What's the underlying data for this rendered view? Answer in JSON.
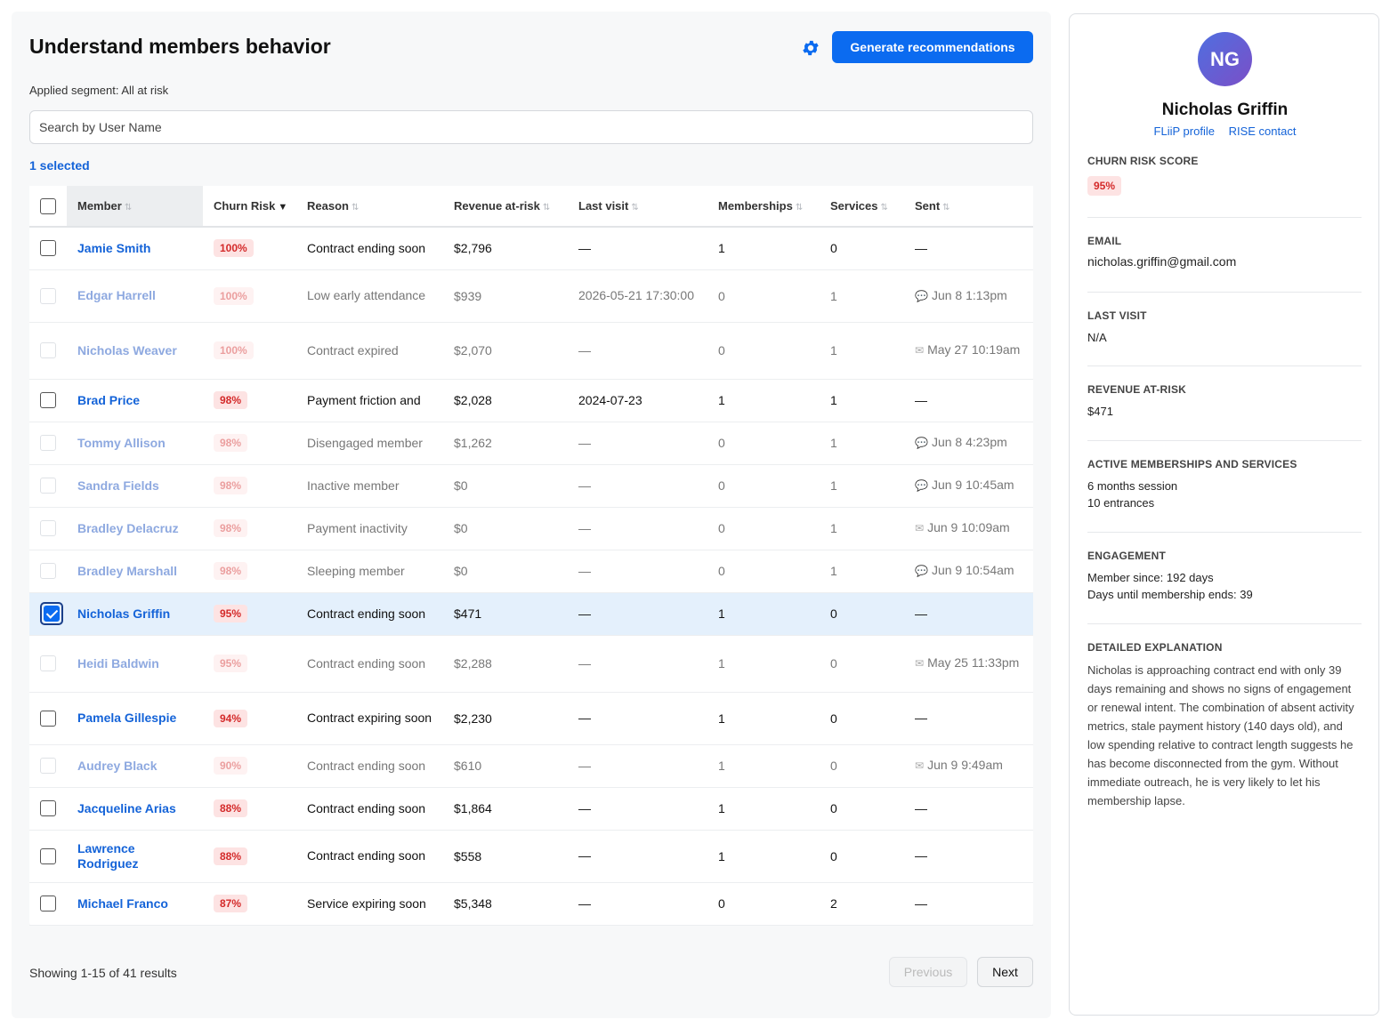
{
  "header": {
    "title": "Understand members behavior",
    "generate_label": "Generate recommendations",
    "segment_text": "Applied segment: All at risk",
    "search_placeholder": "Search by User Name",
    "selected_count": "1 selected"
  },
  "icons": {
    "settings": "gear-icon",
    "sort": "sort-updown-icon",
    "sort_active": "sort-down-icon",
    "sent_chat": "chat-bubble-icon",
    "sent_email": "email-icon"
  },
  "colors": {
    "accent": "#0b6bf0",
    "link": "#1463d8",
    "risk_bg": "#fde3e3",
    "risk_text": "#d42a2a",
    "selected_row": "#e4f0fc"
  },
  "table": {
    "columns": [
      "Member",
      "Churn Risk",
      "Reason",
      "Revenue at-risk",
      "Last visit",
      "Memberships",
      "Services",
      "Sent"
    ],
    "sort_symbol": "⇅",
    "sort_active_symbol": "▼",
    "rows": [
      {
        "name": "Jamie Smith",
        "risk": "100%",
        "reason": "Contract ending soon",
        "revenue": "$2,796",
        "last_visit": "—",
        "memberships": "1",
        "services": "0",
        "sent": "—",
        "sent_icon": "",
        "dim": false,
        "checked": false
      },
      {
        "name": "Edgar Harrell",
        "risk": "100%",
        "reason": "Low early attendance",
        "revenue": "$939",
        "last_visit": "2026-05-21 17:30:00",
        "memberships": "0",
        "services": "1",
        "sent": "Jun 8 1:13pm",
        "sent_icon": "chat",
        "dim": true,
        "checked": false
      },
      {
        "name": "Nicholas Weaver",
        "risk": "100%",
        "reason": "Contract expired",
        "revenue": "$2,070",
        "last_visit": "—",
        "memberships": "0",
        "services": "1",
        "sent": "May 27 10:19am",
        "sent_icon": "email",
        "dim": true,
        "checked": false
      },
      {
        "name": "Brad Price",
        "risk": "98%",
        "reason": "Payment friction and",
        "revenue": "$2,028",
        "last_visit": "2024-07-23",
        "memberships": "1",
        "services": "1",
        "sent": "—",
        "sent_icon": "",
        "dim": false,
        "checked": false
      },
      {
        "name": "Tommy Allison",
        "risk": "98%",
        "reason": "Disengaged member",
        "revenue": "$1,262",
        "last_visit": "—",
        "memberships": "0",
        "services": "1",
        "sent": "Jun 8 4:23pm",
        "sent_icon": "chat",
        "dim": true,
        "checked": false
      },
      {
        "name": "Sandra Fields",
        "risk": "98%",
        "reason": "Inactive member",
        "revenue": "$0",
        "last_visit": "—",
        "memberships": "0",
        "services": "1",
        "sent": "Jun 9 10:45am",
        "sent_icon": "chat",
        "dim": true,
        "checked": false
      },
      {
        "name": "Bradley Delacruz",
        "risk": "98%",
        "reason": "Payment inactivity",
        "revenue": "$0",
        "last_visit": "—",
        "memberships": "0",
        "services": "1",
        "sent": "Jun 9 10:09am",
        "sent_icon": "email",
        "dim": true,
        "checked": false
      },
      {
        "name": "Bradley Marshall",
        "risk": "98%",
        "reason": "Sleeping member",
        "revenue": "$0",
        "last_visit": "—",
        "memberships": "0",
        "services": "1",
        "sent": "Jun 9 10:54am",
        "sent_icon": "chat",
        "dim": true,
        "checked": false
      },
      {
        "name": "Nicholas Griffin",
        "risk": "95%",
        "reason": "Contract ending soon",
        "revenue": "$471",
        "last_visit": "—",
        "memberships": "1",
        "services": "0",
        "sent": "—",
        "sent_icon": "",
        "dim": false,
        "checked": true
      },
      {
        "name": "Heidi Baldwin",
        "risk": "95%",
        "reason": "Contract ending soon",
        "revenue": "$2,288",
        "last_visit": "—",
        "memberships": "1",
        "services": "0",
        "sent": "May 25 11:33pm",
        "sent_icon": "email",
        "dim": true,
        "checked": false
      },
      {
        "name": "Pamela Gillespie",
        "risk": "94%",
        "reason": "Contract expiring soon",
        "revenue": "$2,230",
        "last_visit": "—",
        "memberships": "1",
        "services": "0",
        "sent": "—",
        "sent_icon": "",
        "dim": false,
        "checked": false
      },
      {
        "name": "Audrey Black",
        "risk": "90%",
        "reason": "Contract ending soon",
        "revenue": "$610",
        "last_visit": "—",
        "memberships": "1",
        "services": "0",
        "sent": "Jun 9 9:49am",
        "sent_icon": "email",
        "dim": true,
        "checked": false
      },
      {
        "name": "Jacqueline Arias",
        "risk": "88%",
        "reason": "Contract ending soon",
        "revenue": "$1,864",
        "last_visit": "—",
        "memberships": "1",
        "services": "0",
        "sent": "—",
        "sent_icon": "",
        "dim": false,
        "checked": false
      },
      {
        "name": "Lawrence Rodriguez",
        "risk": "88%",
        "reason": "Contract ending soon",
        "revenue": "$558",
        "last_visit": "—",
        "memberships": "1",
        "services": "0",
        "sent": "—",
        "sent_icon": "",
        "dim": false,
        "checked": false
      },
      {
        "name": "Michael Franco",
        "risk": "87%",
        "reason": "Service expiring soon",
        "revenue": "$5,348",
        "last_visit": "—",
        "memberships": "0",
        "services": "2",
        "sent": "—",
        "sent_icon": "",
        "dim": false,
        "checked": false
      }
    ]
  },
  "pagination": {
    "showing": "Showing 1-15 of 41 results",
    "previous": "Previous",
    "next": "Next"
  },
  "profile": {
    "initials": "NG",
    "name": "Nicholas Griffin",
    "link_fliip": "FLiiP profile",
    "link_rise": "RISE contact",
    "churn_label": "CHURN RISK SCORE",
    "churn_value": "95%",
    "email_label": "EMAIL",
    "email_value": "nicholas.griffin@gmail.com",
    "last_visit_label": "LAST VISIT",
    "last_visit_value": "N/A",
    "revenue_label": "REVENUE AT-RISK",
    "revenue_value": "$471",
    "memberships_label": "ACTIVE MEMBERSHIPS AND SERVICES",
    "membership_1": "6 months session",
    "membership_2": "10 entrances",
    "engagement_label": "ENGAGEMENT",
    "engagement_since": "Member since: 192 days",
    "engagement_until": "Days until membership ends: 39",
    "explanation_label": "DETAILED EXPLANATION",
    "explanation_text": "Nicholas is approaching contract end with only 39 days remaining and shows no signs of engagement or renewal intent. The combination of absent activity metrics, stale payment history (140 days old), and low spending relative to contract length suggests he has become disconnected from the gym. Without immediate outreach, he is very likely to let his membership lapse."
  }
}
